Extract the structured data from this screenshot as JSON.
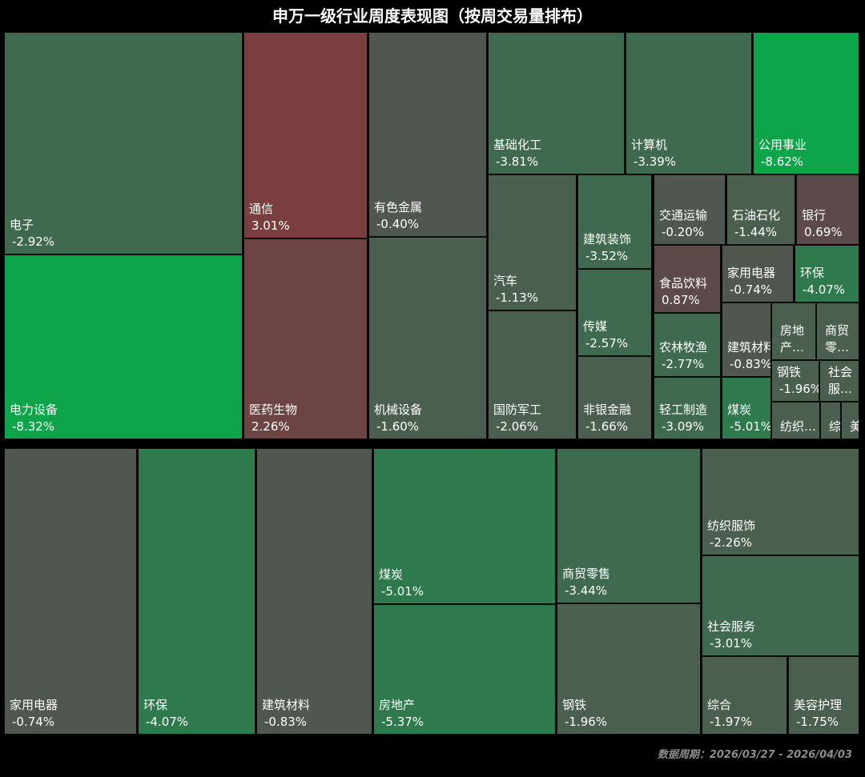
{
  "title": "申万一级行业周度表现图（按周交易量排布）",
  "footer": "数据周期：2026/03/27 - 2026/04/03",
  "colors": {
    "pos_strong": "#7a3e3e",
    "pos_mid": "#6c4444",
    "pos_weak": "#5c4a4a",
    "neutral": "#50574f",
    "neg_weak": "#4a5f4f",
    "neg_mid": "#3f6a4f",
    "neg_strong": "#2f7a4c",
    "neg_max": "#0ea44a"
  },
  "chart_data": {
    "type": "treemap",
    "panels": [
      {
        "name": "",
        "items": [
          {
            "name": "电子",
            "value": "-2.92%"
          },
          {
            "name": "电力设备",
            "value": "-8.32%"
          },
          {
            "name": "通信",
            "value": "3.01%"
          },
          {
            "name": "医药生物",
            "value": "2.26%"
          },
          {
            "name": "有色金属",
            "value": "-0.40%"
          },
          {
            "name": "机械设备",
            "value": "-1.60%"
          },
          {
            "name": "基础化工",
            "value": "-3.81%"
          },
          {
            "name": "计算机",
            "value": "-3.39%"
          },
          {
            "name": "公用事业",
            "value": "-8.62%"
          },
          {
            "name": "汽车",
            "value": "-1.13%"
          },
          {
            "name": "国防军工",
            "value": "-2.06%"
          },
          {
            "name": "建筑装饰",
            "value": "-3.52%"
          },
          {
            "name": "传媒",
            "value": "-2.57%"
          },
          {
            "name": "非银金融",
            "value": "-1.66%"
          },
          {
            "name": "交通运输",
            "value": "-0.20%"
          },
          {
            "name": "石油石化",
            "value": "-1.44%"
          },
          {
            "name": "银行",
            "value": "0.69%"
          },
          {
            "name": "食品饮料",
            "value": "0.87%"
          },
          {
            "name": "农林牧渔",
            "value": "-2.77%"
          },
          {
            "name": "轻工制造",
            "value": "-3.09%"
          },
          {
            "name": "家用电器",
            "value": "-0.74%"
          },
          {
            "name": "环保",
            "value": "-4.07%"
          },
          {
            "name": "建筑材料",
            "value": "-0.83%"
          },
          {
            "name": "煤炭",
            "value": "-5.01%"
          },
          {
            "name": "房地产",
            "value": "",
            "short": "房地\n产…"
          },
          {
            "name": "商贸零售",
            "value": "",
            "short": "商贸\n零…"
          },
          {
            "name": "钢铁",
            "value": "-1.96%"
          },
          {
            "name": "社会服务",
            "value": "",
            "short": "社会\n服…"
          },
          {
            "name": "纺织服饰",
            "value": "",
            "short": "纺织…"
          },
          {
            "name": "综合",
            "value": "",
            "short": "综…"
          },
          {
            "name": "美容护理",
            "value": "",
            "short": "美"
          }
        ]
      },
      {
        "name": "",
        "items": [
          {
            "name": "家用电器",
            "value": "-0.74%"
          },
          {
            "name": "环保",
            "value": "-4.07%"
          },
          {
            "name": "建筑材料",
            "value": "-0.83%"
          },
          {
            "name": "煤炭",
            "value": "-5.01%"
          },
          {
            "name": "房地产",
            "value": "-5.37%"
          },
          {
            "name": "商贸零售",
            "value": "-3.44%"
          },
          {
            "name": "钢铁",
            "value": "-1.96%"
          },
          {
            "name": "纺织服饰",
            "value": "-2.26%"
          },
          {
            "name": "社会服务",
            "value": "-3.01%"
          },
          {
            "name": "综合",
            "value": "-1.97%"
          },
          {
            "name": "美容护理",
            "value": "-1.75%"
          }
        ]
      }
    ]
  }
}
